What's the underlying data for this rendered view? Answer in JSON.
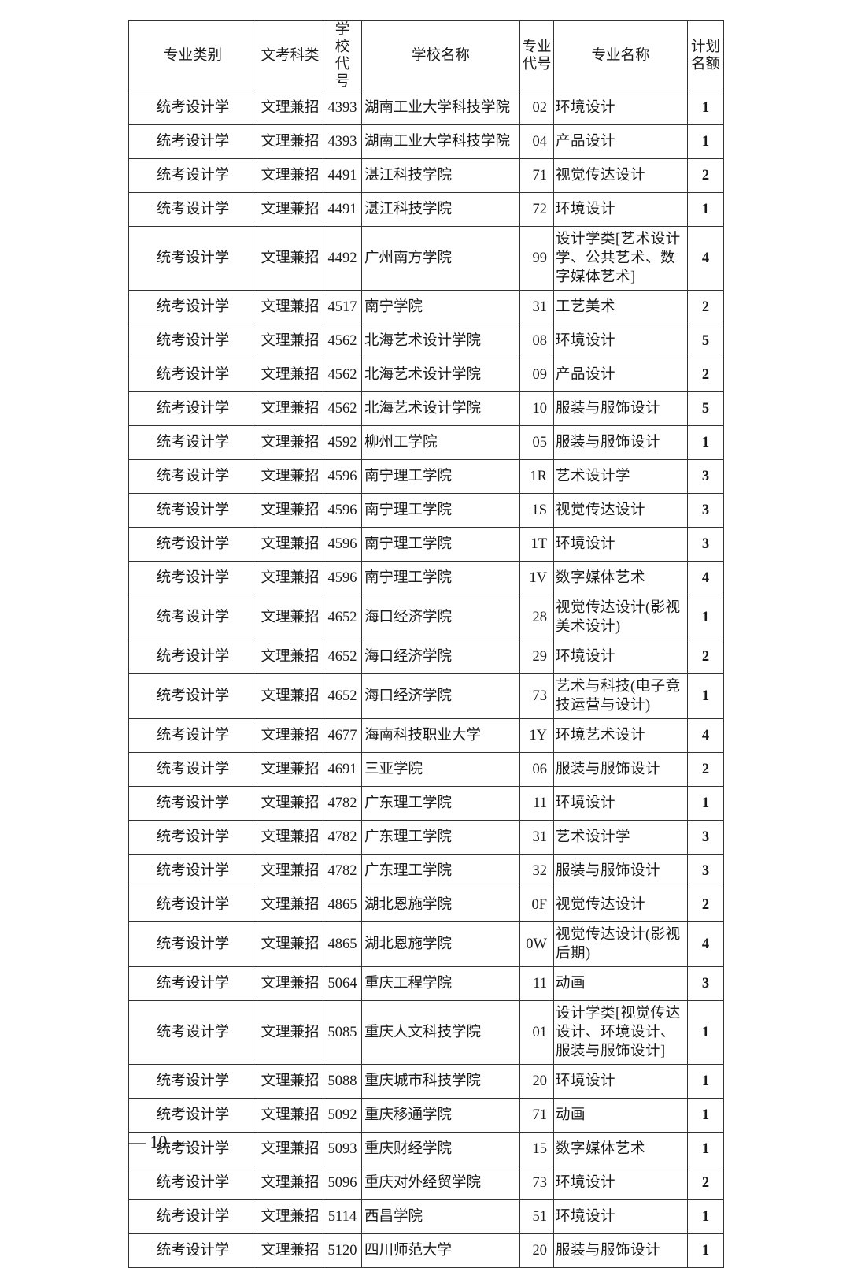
{
  "headers": [
    "专业类别",
    "文考科类",
    "学校代号",
    "学校名称",
    "专业代号",
    "专业名称",
    "计划名额"
  ],
  "rows": [
    [
      "统考设计学",
      "文理兼招",
      "4393",
      "湖南工业大学科技学院",
      "02",
      "环境设计",
      "1"
    ],
    [
      "统考设计学",
      "文理兼招",
      "4393",
      "湖南工业大学科技学院",
      "04",
      "产品设计",
      "1"
    ],
    [
      "统考设计学",
      "文理兼招",
      "4491",
      "湛江科技学院",
      "71",
      "视觉传达设计",
      "2"
    ],
    [
      "统考设计学",
      "文理兼招",
      "4491",
      "湛江科技学院",
      "72",
      "环境设计",
      "1"
    ],
    [
      "统考设计学",
      "文理兼招",
      "4492",
      "广州南方学院",
      "99",
      "设计学类[艺术设计学、公共艺术、数字媒体艺术]",
      "4"
    ],
    [
      "统考设计学",
      "文理兼招",
      "4517",
      "南宁学院",
      "31",
      "工艺美术",
      "2"
    ],
    [
      "统考设计学",
      "文理兼招",
      "4562",
      "北海艺术设计学院",
      "08",
      "环境设计",
      "5"
    ],
    [
      "统考设计学",
      "文理兼招",
      "4562",
      "北海艺术设计学院",
      "09",
      "产品设计",
      "2"
    ],
    [
      "统考设计学",
      "文理兼招",
      "4562",
      "北海艺术设计学院",
      "10",
      "服装与服饰设计",
      "5"
    ],
    [
      "统考设计学",
      "文理兼招",
      "4592",
      "柳州工学院",
      "05",
      "服装与服饰设计",
      "1"
    ],
    [
      "统考设计学",
      "文理兼招",
      "4596",
      "南宁理工学院",
      "1R",
      "艺术设计学",
      "3"
    ],
    [
      "统考设计学",
      "文理兼招",
      "4596",
      "南宁理工学院",
      "1S",
      "视觉传达设计",
      "3"
    ],
    [
      "统考设计学",
      "文理兼招",
      "4596",
      "南宁理工学院",
      "1T",
      "环境设计",
      "3"
    ],
    [
      "统考设计学",
      "文理兼招",
      "4596",
      "南宁理工学院",
      "1V",
      "数字媒体艺术",
      "4"
    ],
    [
      "统考设计学",
      "文理兼招",
      "4652",
      "海口经济学院",
      "28",
      "视觉传达设计(影视美术设计)",
      "1"
    ],
    [
      "统考设计学",
      "文理兼招",
      "4652",
      "海口经济学院",
      "29",
      "环境设计",
      "2"
    ],
    [
      "统考设计学",
      "文理兼招",
      "4652",
      "海口经济学院",
      "73",
      "艺术与科技(电子竞技运营与设计)",
      "1"
    ],
    [
      "统考设计学",
      "文理兼招",
      "4677",
      "海南科技职业大学",
      "1Y",
      "环境艺术设计",
      "4"
    ],
    [
      "统考设计学",
      "文理兼招",
      "4691",
      "三亚学院",
      "06",
      "服装与服饰设计",
      "2"
    ],
    [
      "统考设计学",
      "文理兼招",
      "4782",
      "广东理工学院",
      "11",
      "环境设计",
      "1"
    ],
    [
      "统考设计学",
      "文理兼招",
      "4782",
      "广东理工学院",
      "31",
      "艺术设计学",
      "3"
    ],
    [
      "统考设计学",
      "文理兼招",
      "4782",
      "广东理工学院",
      "32",
      "服装与服饰设计",
      "3"
    ],
    [
      "统考设计学",
      "文理兼招",
      "4865",
      "湖北恩施学院",
      "0F",
      "视觉传达设计",
      "2"
    ],
    [
      "统考设计学",
      "文理兼招",
      "4865",
      "湖北恩施学院",
      "0W",
      "视觉传达设计(影视后期)",
      "4"
    ],
    [
      "统考设计学",
      "文理兼招",
      "5064",
      "重庆工程学院",
      "11",
      "动画",
      "3"
    ],
    [
      "统考设计学",
      "文理兼招",
      "5085",
      "重庆人文科技学院",
      "01",
      "设计学类[视觉传达设计、环境设计、服装与服饰设计]",
      "1"
    ],
    [
      "统考设计学",
      "文理兼招",
      "5088",
      "重庆城市科技学院",
      "20",
      "环境设计",
      "1"
    ],
    [
      "统考设计学",
      "文理兼招",
      "5092",
      "重庆移通学院",
      "71",
      "动画",
      "1"
    ],
    [
      "统考设计学",
      "文理兼招",
      "5093",
      "重庆财经学院",
      "15",
      "数字媒体艺术",
      "1"
    ],
    [
      "统考设计学",
      "文理兼招",
      "5096",
      "重庆对外经贸学院",
      "73",
      "环境设计",
      "2"
    ],
    [
      "统考设计学",
      "文理兼招",
      "5114",
      "西昌学院",
      "51",
      "环境设计",
      "1"
    ],
    [
      "统考设计学",
      "文理兼招",
      "5120",
      "四川师范大学",
      "20",
      "服装与服饰设计",
      "1"
    ]
  ],
  "footer": {
    "page_number": "— 10 —"
  }
}
